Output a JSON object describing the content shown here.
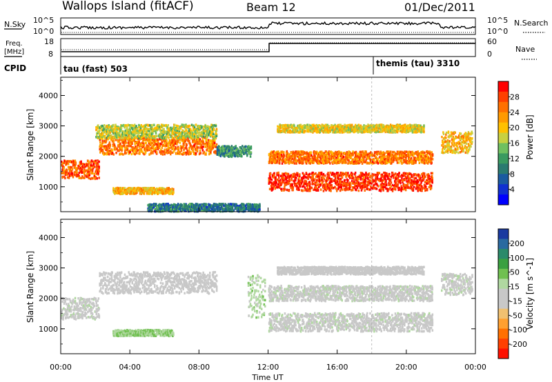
{
  "header": {
    "station": "Wallops Island (fitACF)",
    "beam": "Beam 12",
    "date": "01/Dec/2011"
  },
  "status_panel": {
    "nsky_label": "N.Sky",
    "nsearch_label": "N.Search",
    "noise_ticks": [
      "10^5",
      "10^0"
    ],
    "freq_label_1": "Freq.",
    "freq_label_2": "[MHz]",
    "freq_ticks": [
      "18",
      "8"
    ],
    "nave_label": "Nave",
    "nave_ticks": [
      "60",
      "0"
    ],
    "cpid_label": "CPID",
    "cpid_entries": [
      {
        "name": "tau (fast) 503",
        "start_hour": 0
      },
      {
        "name": "themis (tau) 3310",
        "start_hour": 18
      }
    ]
  },
  "power_colorbar": {
    "label": "Power [dB]",
    "ticks": [
      "28",
      "24",
      "20",
      "16",
      "12",
      "8",
      "4"
    ],
    "colors": [
      "#ff0000",
      "#ff4000",
      "#ff7000",
      "#ff9a00",
      "#ffc000",
      "#c8d040",
      "#70c060",
      "#3a9a60",
      "#2a7a70",
      "#1a5aa0",
      "#1030d0",
      "#0000ff"
    ]
  },
  "velocity_colorbar": {
    "label": "Velocity [m s^-1]",
    "ticks": [
      "200",
      "100",
      "50",
      "15",
      "-15",
      "-50",
      "-100",
      "-200"
    ],
    "colors": [
      "#1a3aa0",
      "#2a6aa0",
      "#2a8a6a",
      "#3aa040",
      "#70c050",
      "#b0d8a0",
      "#c8c8c8",
      "#c8c8c8",
      "#f0c070",
      "#ffa030",
      "#ff7000",
      "#ff4000",
      "#ff1000"
    ]
  },
  "time_axis": {
    "label": "Time UT",
    "ticks": [
      "00:00",
      "04:00",
      "08:00",
      "12:00",
      "16:00",
      "20:00",
      "00:00"
    ]
  },
  "range_axis": {
    "label": "Slant Range [km]",
    "ticks": [
      "1000",
      "2000",
      "3000",
      "4000"
    ]
  },
  "chart_data": [
    {
      "type": "heatmap",
      "title": "Power",
      "ylabel": "Slant Range [km]",
      "xlim": [
        0,
        24
      ],
      "ylim": [
        180,
        4600
      ],
      "colorbar_label": "Power [dB]",
      "colorbar_range": [
        0,
        30
      ],
      "bands": [
        {
          "t0": 0.0,
          "t1": 2.2,
          "r_center": 1600,
          "r_width": 600,
          "level": 26
        },
        {
          "t0": 2.2,
          "t1": 9.0,
          "r_center": 2400,
          "r_width": 600,
          "level": 24
        },
        {
          "t0": 2.0,
          "t1": 9.0,
          "r_center": 2850,
          "r_width": 450,
          "level": 16
        },
        {
          "t0": 3.0,
          "t1": 6.5,
          "r_center": 900,
          "r_width": 200,
          "level": 20
        },
        {
          "t0": 9.0,
          "t1": 11.0,
          "r_center": 2200,
          "r_width": 350,
          "level": 10
        },
        {
          "t0": 12.0,
          "t1": 21.5,
          "r_center": 1200,
          "r_width": 600,
          "level": 28
        },
        {
          "t0": 12.0,
          "t1": 21.5,
          "r_center": 2000,
          "r_width": 400,
          "level": 24
        },
        {
          "t0": 12.5,
          "t1": 21.0,
          "r_center": 2950,
          "r_width": 250,
          "level": 18
        },
        {
          "t0": 22.0,
          "t1": 23.8,
          "r_center": 2500,
          "r_width": 700,
          "level": 20
        },
        {
          "t0": 5.0,
          "t1": 11.5,
          "r_center": 350,
          "r_width": 250,
          "level": 8
        }
      ]
    },
    {
      "type": "heatmap",
      "title": "Velocity",
      "ylabel": "Slant Range [km]",
      "xlim": [
        0,
        24
      ],
      "ylim": [
        180,
        4600
      ],
      "colorbar_label": "Velocity [m s^-1]",
      "colorbar_range": [
        -250,
        250
      ],
      "bands": [
        {
          "t0": 0.0,
          "t1": 2.2,
          "r_center": 1700,
          "r_width": 700,
          "level": 0
        },
        {
          "t0": 2.2,
          "t1": 9.0,
          "r_center": 2550,
          "r_width": 700,
          "level": -30
        },
        {
          "t0": 3.0,
          "t1": 6.5,
          "r_center": 900,
          "r_width": 200,
          "level": 60
        },
        {
          "t0": 10.8,
          "t1": 11.8,
          "r_center": 2100,
          "r_width": 1400,
          "level": 40
        },
        {
          "t0": 12.0,
          "t1": 21.5,
          "r_center": 1250,
          "r_width": 600,
          "level": 0
        },
        {
          "t0": 12.0,
          "t1": 21.5,
          "r_center": 2200,
          "r_width": 500,
          "level": 0
        },
        {
          "t0": 12.5,
          "t1": 21.0,
          "r_center": 2950,
          "r_width": 250,
          "level": -10
        },
        {
          "t0": 22.0,
          "t1": 23.8,
          "r_center": 2500,
          "r_width": 700,
          "level": 0
        }
      ]
    }
  ]
}
